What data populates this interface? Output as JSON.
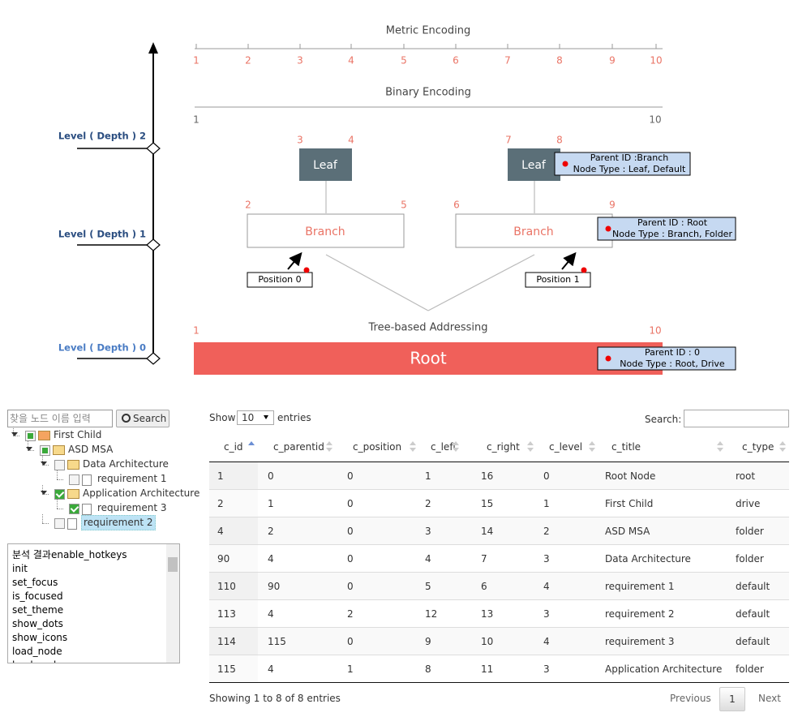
{
  "diagram": {
    "levels": [
      "Level ( Depth ) 2",
      "Level ( Depth ) 1",
      "Level ( Depth ) 0"
    ],
    "metric_title": "Metric Encoding",
    "metric_ticks": [
      "1",
      "2",
      "3",
      "4",
      "5",
      "6",
      "7",
      "8",
      "9",
      "10"
    ],
    "binary_title": "Binary Encoding",
    "binary_ends": [
      "1",
      "10"
    ],
    "leaves": [
      {
        "label": "Leaf",
        "left": "3",
        "right": "4"
      },
      {
        "label": "Leaf",
        "left": "7",
        "right": "8"
      }
    ],
    "branches": [
      {
        "label": "Branch",
        "left": "2",
        "right": "5",
        "position": "Position 0"
      },
      {
        "label": "Branch",
        "left": "6",
        "right": "9",
        "position": "Position 1"
      }
    ],
    "tree_title": "Tree-based Addressing",
    "tree_ends": [
      "1",
      "10"
    ],
    "root": "Root",
    "tooltips": [
      [
        "Parent ID :Branch",
        "Node Type : Leaf, Default"
      ],
      [
        "Parent ID : Root",
        "Node Type : Branch, Folder"
      ],
      [
        "Parent ID : 0",
        "Node Type : Root, Drive"
      ]
    ]
  },
  "tree_search": {
    "placeholder": "찾을 노드 이름 입력",
    "button": "Search"
  },
  "tree": [
    "First Child",
    "ASD MSA",
    "Data Architecture",
    "requirement 1",
    "Application Architecture",
    "requirement 3",
    "requirement 2"
  ],
  "method_list": [
    "분석 결과enable_hotkeys",
    "init",
    "set_focus",
    "is_focused",
    "set_theme",
    "show_dots",
    "show_icons",
    "load_node",
    "load_node"
  ],
  "table": {
    "show": "Show",
    "length": "10",
    "entries": "entries",
    "search_label": "Search:",
    "columns": [
      "c_id",
      "c_parentid",
      "c_position",
      "c_left",
      "c_right",
      "c_level",
      "c_title",
      "c_type"
    ],
    "rows": [
      [
        "1",
        "0",
        "0",
        "1",
        "16",
        "0",
        "Root Node",
        "root"
      ],
      [
        "2",
        "1",
        "0",
        "2",
        "15",
        "1",
        "First Child",
        "drive"
      ],
      [
        "4",
        "2",
        "0",
        "3",
        "14",
        "2",
        "ASD MSA",
        "folder"
      ],
      [
        "90",
        "4",
        "0",
        "4",
        "7",
        "3",
        "Data Architecture",
        "folder"
      ],
      [
        "110",
        "90",
        "0",
        "5",
        "6",
        "4",
        "requirement 1",
        "default"
      ],
      [
        "113",
        "4",
        "2",
        "12",
        "13",
        "3",
        "requirement 2",
        "default"
      ],
      [
        "114",
        "115",
        "0",
        "9",
        "10",
        "4",
        "requirement 3",
        "default"
      ],
      [
        "115",
        "4",
        "1",
        "8",
        "11",
        "3",
        "Application Architecture",
        "folder"
      ]
    ],
    "info": "Showing 1 to 8 of 8 entries",
    "previous": "Previous",
    "page": "1",
    "next": "Next"
  }
}
